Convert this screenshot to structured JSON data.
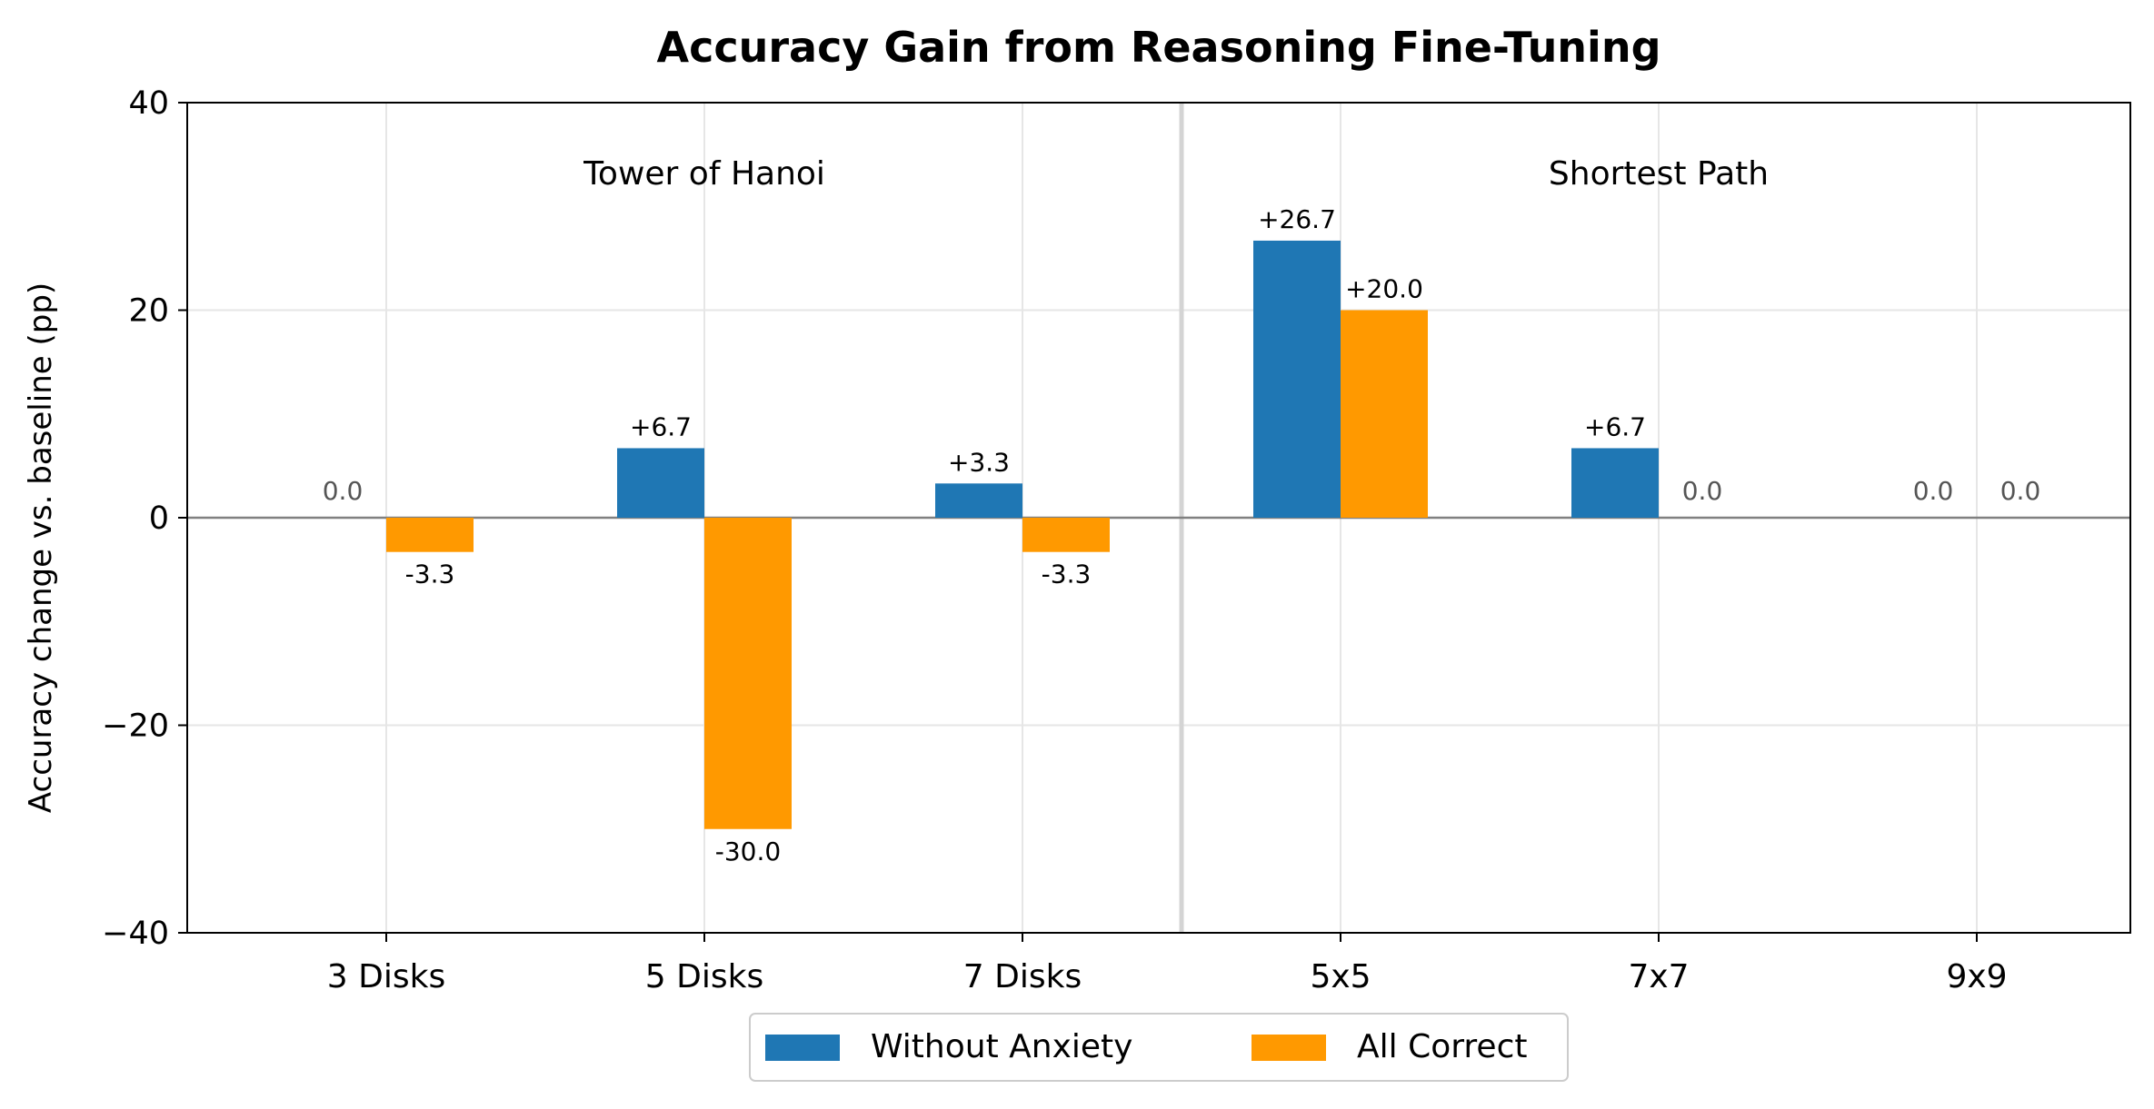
{
  "chart_data": {
    "type": "bar",
    "title": "Accuracy Gain from Reasoning Fine-Tuning",
    "xlabel": "",
    "ylabel": "Accuracy change vs. baseline (pp)",
    "ylim": [
      -40,
      40
    ],
    "yticks": [
      -40,
      -20,
      0,
      20,
      40
    ],
    "ytick_labels": [
      "−40",
      "−20",
      "0",
      "20",
      "40"
    ],
    "grid": true,
    "legend_position": "bottom-center",
    "categories": [
      "3 Disks",
      "5 Disks",
      "7 Disks",
      "5x5",
      "7x7",
      "9x9"
    ],
    "groups": [
      {
        "label": "Tower of Hanoi",
        "categories": [
          "3 Disks",
          "5 Disks",
          "7 Disks"
        ]
      },
      {
        "label": "Shortest Path",
        "categories": [
          "5x5",
          "7x7",
          "9x9"
        ]
      }
    ],
    "series": [
      {
        "name": "Without Anxiety",
        "color": "#1f77b4",
        "values": [
          0.0,
          6.7,
          3.3,
          26.7,
          6.7,
          0.0
        ],
        "labels": [
          "0.0",
          "+6.7",
          "+3.3",
          "+26.7",
          "+6.7",
          "0.0"
        ]
      },
      {
        "name": "All Correct",
        "color": "#ff9900",
        "values": [
          -3.3,
          -30.0,
          -3.3,
          20.0,
          0.0,
          0.0
        ],
        "labels": [
          "-3.3",
          "-30.0",
          "-3.3",
          "+20.0",
          "0.0",
          "0.0"
        ]
      }
    ],
    "zero_label_color": "#555555"
  }
}
